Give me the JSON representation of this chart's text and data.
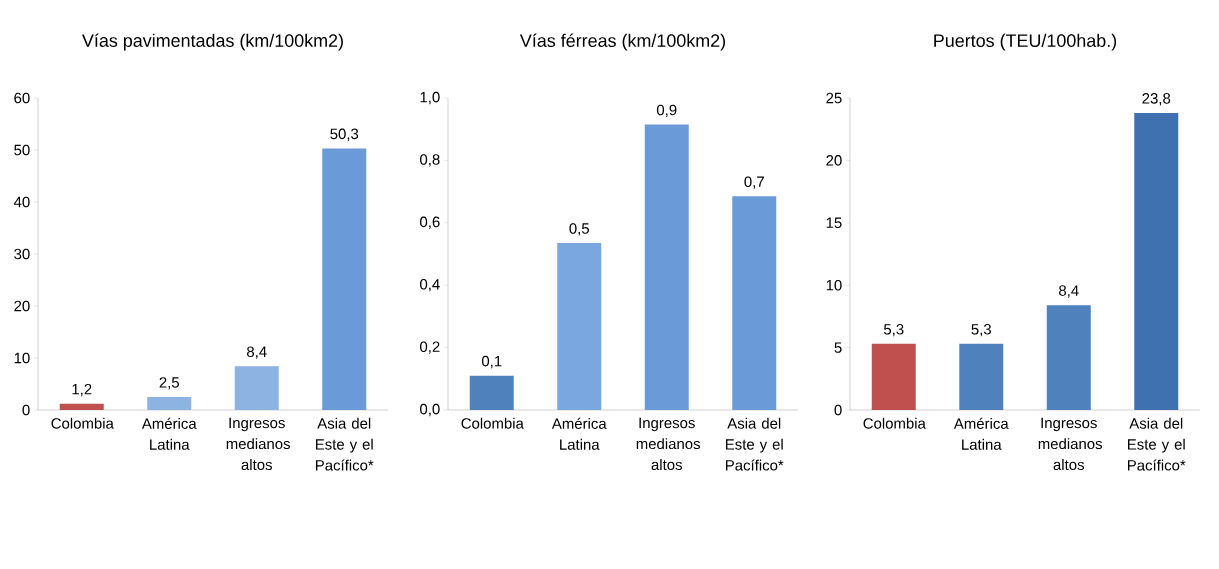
{
  "chart_data": [
    {
      "type": "bar",
      "title": "Vías pavimentadas (km/100km2)",
      "categories": [
        "Colombia",
        "América Latina",
        "Ingresos medianos altos",
        "Asia del Este y el Pacífico*"
      ],
      "values": [
        1.2,
        2.5,
        8.4,
        50.3
      ],
      "value_labels": [
        "1,2",
        "2,5",
        "8,4",
        "50,3"
      ],
      "colors": [
        "#c0504d",
        "#8db3e2",
        "#8db3e2",
        "#6a9bd8"
      ],
      "ylim": [
        0,
        60
      ],
      "yticks": [
        0,
        10,
        20,
        30,
        40,
        50,
        60
      ]
    },
    {
      "type": "bar",
      "title": "Vías férreas (km/100km2)",
      "categories": [
        "Colombia",
        "América Latina",
        "Ingresos medianos altos",
        "Asia del Este y el Pacífico*"
      ],
      "values": [
        0.11,
        0.535,
        0.915,
        0.685
      ],
      "value_labels": [
        "0,1",
        "0,5",
        "0,9",
        "0,7"
      ],
      "colors": [
        "#4f81bd",
        "#7aa7e0",
        "#6a9bd8",
        "#6a9bd8"
      ],
      "ylim": [
        0,
        1
      ],
      "yticks": [
        {
          "value": 0,
          "label": "0,0"
        },
        {
          "value": 0.2,
          "label": "0,2"
        },
        {
          "value": 0.4,
          "label": "0,4"
        },
        {
          "value": 0.6,
          "label": "0,6"
        },
        {
          "value": 0.8,
          "label": "0,8"
        },
        {
          "value": 1,
          "label": "1,0"
        }
      ]
    },
    {
      "type": "bar",
      "title": "Puertos (TEU/100hab.)",
      "categories": [
        "Colombia",
        "América Latina",
        "Ingresos medianos altos",
        "Asia del Este y el Pacífico*"
      ],
      "values": [
        5.3,
        5.3,
        8.4,
        23.8
      ],
      "value_labels": [
        "5,3",
        "5,3",
        "8,4",
        "23,8"
      ],
      "colors": [
        "#c0504d",
        "#4f81bd",
        "#4f81bd",
        "#3f70b0"
      ],
      "ylim": [
        0,
        25
      ],
      "yticks": [
        0,
        5,
        10,
        15,
        20,
        25
      ]
    }
  ]
}
